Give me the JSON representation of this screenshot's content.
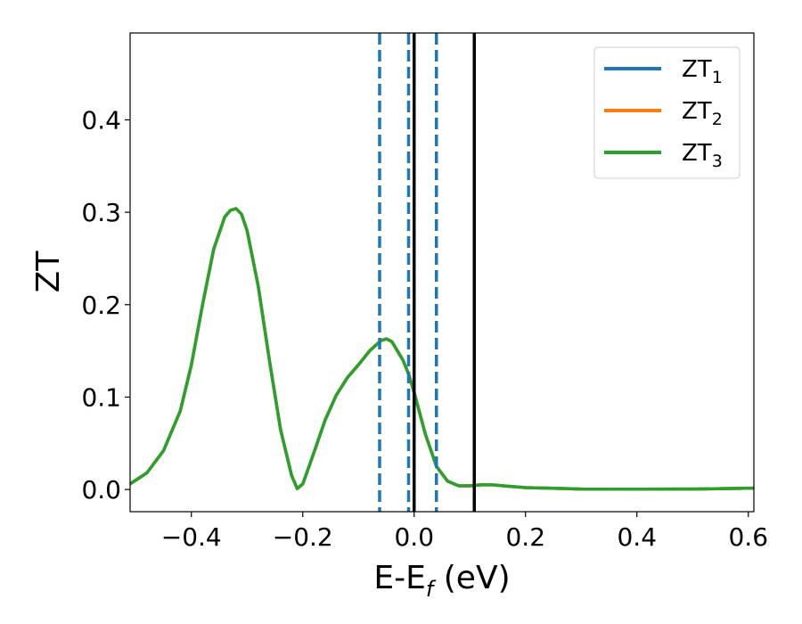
{
  "chart_data": {
    "type": "line",
    "title": "",
    "xlabel_main": "E-E",
    "xlabel_sub": "f",
    "xlabel_unit": " (eV)",
    "ylabel": "ZT",
    "xlim": [
      -0.51,
      0.61
    ],
    "ylim": [
      -0.024,
      0.494
    ],
    "grid": false,
    "legend_position": "top-right",
    "xticks": [
      {
        "value": -0.4,
        "label": "−0.4"
      },
      {
        "value": -0.2,
        "label": "−0.2"
      },
      {
        "value": 0.0,
        "label": "0.0"
      },
      {
        "value": 0.2,
        "label": "0.2"
      },
      {
        "value": 0.4,
        "label": "0.4"
      },
      {
        "value": 0.6,
        "label": "0.6"
      }
    ],
    "yticks": [
      {
        "value": 0.0,
        "label": "0.0"
      },
      {
        "value": 0.1,
        "label": "0.1"
      },
      {
        "value": 0.2,
        "label": "0.2"
      },
      {
        "value": 0.3,
        "label": "0.3"
      },
      {
        "value": 0.4,
        "label": "0.4"
      }
    ],
    "x": [
      -0.51,
      -0.48,
      -0.45,
      -0.42,
      -0.4,
      -0.38,
      -0.36,
      -0.34,
      -0.33,
      -0.32,
      -0.31,
      -0.3,
      -0.28,
      -0.26,
      -0.24,
      -0.22,
      -0.21,
      -0.2,
      -0.18,
      -0.16,
      -0.14,
      -0.12,
      -0.1,
      -0.08,
      -0.06,
      -0.05,
      -0.04,
      -0.02,
      -0.01,
      0.0,
      0.02,
      0.04,
      0.06,
      0.08,
      0.1,
      0.12,
      0.14,
      0.16,
      0.2,
      0.3,
      0.4,
      0.5,
      0.61
    ],
    "series": [
      {
        "name_main": "ZT",
        "name_sub": "1",
        "color": "#1f77b4",
        "values": [
          0.006,
          0.018,
          0.042,
          0.085,
          0.135,
          0.2,
          0.26,
          0.295,
          0.302,
          0.304,
          0.298,
          0.28,
          0.22,
          0.14,
          0.065,
          0.015,
          0.001,
          0.006,
          0.04,
          0.075,
          0.102,
          0.121,
          0.135,
          0.15,
          0.161,
          0.163,
          0.16,
          0.14,
          0.125,
          0.105,
          0.06,
          0.025,
          0.009,
          0.004,
          0.004,
          0.005,
          0.005,
          0.004,
          0.002,
          0.0005,
          0.0003,
          0.0005,
          0.0015
        ]
      },
      {
        "name_main": "ZT",
        "name_sub": "2",
        "color": "#ff7f0e",
        "values": [
          0.006,
          0.018,
          0.042,
          0.085,
          0.135,
          0.2,
          0.26,
          0.295,
          0.302,
          0.304,
          0.298,
          0.28,
          0.22,
          0.14,
          0.065,
          0.015,
          0.001,
          0.006,
          0.04,
          0.075,
          0.102,
          0.121,
          0.135,
          0.15,
          0.161,
          0.163,
          0.16,
          0.14,
          0.125,
          0.105,
          0.06,
          0.025,
          0.009,
          0.004,
          0.004,
          0.005,
          0.005,
          0.004,
          0.002,
          0.0005,
          0.0003,
          0.0005,
          0.0015
        ]
      },
      {
        "name_main": "ZT",
        "name_sub": "3",
        "color": "#2ca02c",
        "values": [
          0.006,
          0.018,
          0.042,
          0.085,
          0.135,
          0.2,
          0.26,
          0.295,
          0.302,
          0.304,
          0.298,
          0.28,
          0.22,
          0.14,
          0.065,
          0.015,
          0.001,
          0.006,
          0.04,
          0.075,
          0.102,
          0.121,
          0.135,
          0.15,
          0.161,
          0.163,
          0.16,
          0.14,
          0.125,
          0.105,
          0.06,
          0.025,
          0.009,
          0.004,
          0.004,
          0.005,
          0.005,
          0.004,
          0.002,
          0.0005,
          0.0003,
          0.0005,
          0.0015
        ]
      }
    ],
    "vertical_lines": [
      {
        "x": -0.062,
        "style": "dashed",
        "color": "#1f77b4"
      },
      {
        "x": -0.01,
        "style": "dashed",
        "color": "#1f77b4"
      },
      {
        "x": 0.04,
        "style": "dashed",
        "color": "#1f77b4"
      },
      {
        "x": 0.0,
        "style": "solid",
        "color": "#000000"
      },
      {
        "x": 0.108,
        "style": "solid",
        "color": "#000000"
      }
    ]
  }
}
